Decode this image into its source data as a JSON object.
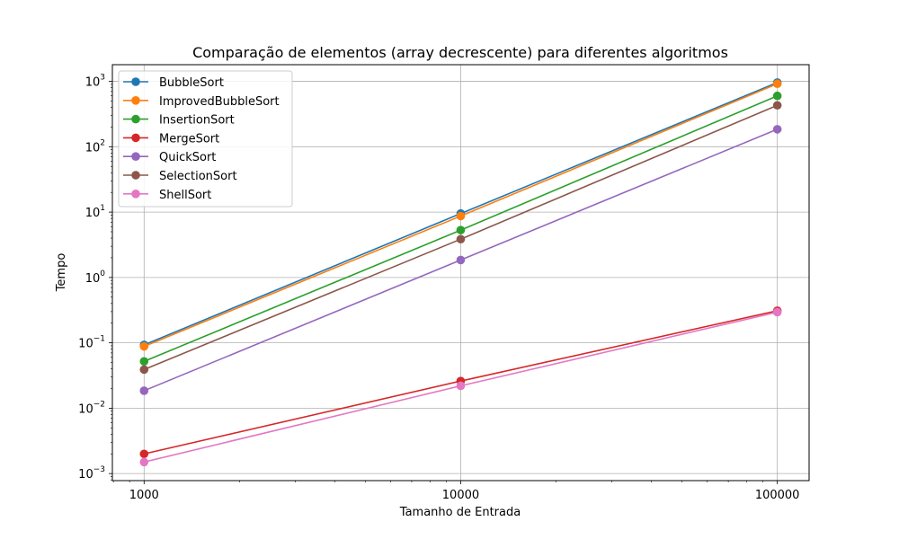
{
  "chart_data": {
    "type": "line",
    "title": "Comparação de elementos (array decrescente) para diferentes algoritmos",
    "xlabel": "Tamanho de Entrada",
    "ylabel": "Tempo",
    "xscale": "log",
    "yscale": "log",
    "x": [
      1000,
      10000,
      100000
    ],
    "x_tick_labels": [
      "1000",
      "10000",
      "100000"
    ],
    "y_ticks": [
      {
        "value": 0.001,
        "base": "10",
        "exp": "−3"
      },
      {
        "value": 0.01,
        "base": "10",
        "exp": "−2"
      },
      {
        "value": 0.1,
        "base": "10",
        "exp": "−1"
      },
      {
        "value": 1,
        "base": "10",
        "exp": "0"
      },
      {
        "value": 10,
        "base": "10",
        "exp": "1"
      },
      {
        "value": 100,
        "base": "10",
        "exp": "2"
      },
      {
        "value": 1000,
        "base": "10",
        "exp": "3"
      }
    ],
    "xlim": [
      794,
      126000
    ],
    "ylim": [
      0.00078,
      1800
    ],
    "grid": true,
    "legend_position": "top-left",
    "series": [
      {
        "name": "BubbleSort",
        "color": "#1f77b4",
        "values": [
          0.093,
          9.5,
          960
        ]
      },
      {
        "name": "ImprovedBubbleSort",
        "color": "#ff7f0e",
        "values": [
          0.088,
          8.7,
          920
        ]
      },
      {
        "name": "InsertionSort",
        "color": "#2ca02c",
        "values": [
          0.052,
          5.3,
          600
        ]
      },
      {
        "name": "MergeSort",
        "color": "#d62728",
        "values": [
          0.002,
          0.026,
          0.31
        ]
      },
      {
        "name": "QuickSort",
        "color": "#9467bd",
        "values": [
          0.0185,
          1.85,
          185
        ]
      },
      {
        "name": "SelectionSort",
        "color": "#8c564b",
        "values": [
          0.039,
          3.85,
          430
        ]
      },
      {
        "name": "ShellSort",
        "color": "#e377c2",
        "values": [
          0.0015,
          0.022,
          0.295
        ]
      }
    ]
  }
}
